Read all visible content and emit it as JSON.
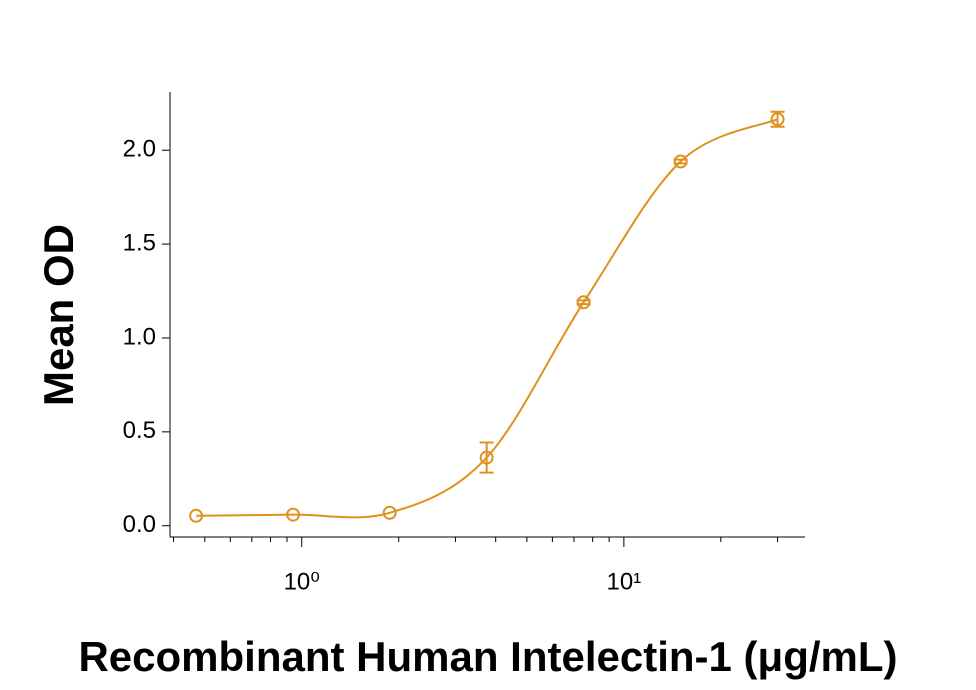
{
  "chart_data": {
    "type": "scatter",
    "x_label": "Recombinant Human Intelectin-1 (μg/mL)",
    "y_label": "Mean OD",
    "x": [
      0.47,
      0.94,
      1.875,
      3.75,
      7.5,
      15,
      30
    ],
    "series": [
      {
        "name": "Mean OD",
        "color": "#e0901e",
        "values": [
          0.053,
          0.059,
          0.069,
          0.363,
          1.19,
          1.94,
          2.165
        ],
        "errors": [
          null,
          null,
          null,
          0.08,
          0.01,
          0.01,
          0.04
        ]
      }
    ],
    "xscale": "log",
    "xlim": [
      0.39,
      36.5
    ],
    "xticks": [
      {
        "value": 1,
        "label": "10⁰"
      },
      {
        "value": 10,
        "label": "10¹"
      }
    ],
    "xminorticks": [
      0.4,
      0.5,
      0.6,
      0.7,
      0.8,
      0.9,
      2,
      3,
      4,
      5,
      6,
      7,
      8,
      9,
      20,
      30
    ],
    "ylim": [
      -0.06,
      2.31
    ],
    "yticks": [
      {
        "value": 0,
        "label": "0.0"
      },
      {
        "value": 0.5,
        "label": "0.5"
      },
      {
        "value": 1,
        "label": "1.0"
      },
      {
        "value": 1.5,
        "label": "1.5"
      },
      {
        "value": 2,
        "label": "2.0"
      }
    ],
    "fit_curve": true
  }
}
